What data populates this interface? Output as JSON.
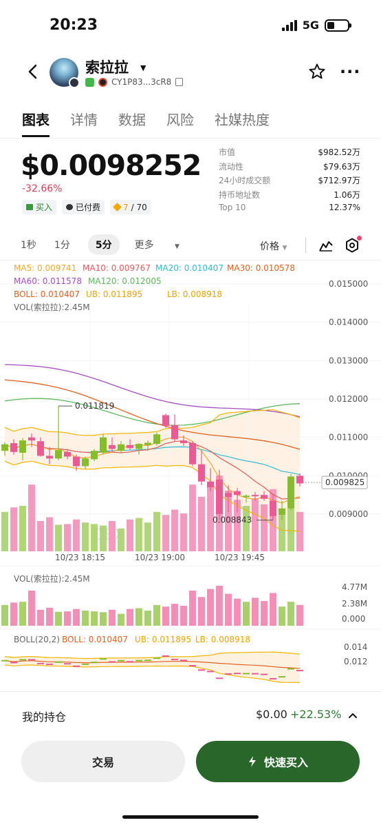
{
  "status": {
    "time": "20:23",
    "network": "5G"
  },
  "token": {
    "name": "索拉拉",
    "address": "CY1P83...3cR8"
  },
  "tabs": [
    "图表",
    "详情",
    "数据",
    "风险",
    "社媒热度"
  ],
  "price": {
    "value": "$0.0098252",
    "change": "-32.66%"
  },
  "pills": {
    "buy": "买入",
    "paid": "已付费",
    "score": "7",
    "score_total": "/ 70"
  },
  "stats": [
    {
      "label": "市值",
      "value": "$982.52万"
    },
    {
      "label": "流动性",
      "value": "$79.63万"
    },
    {
      "label": "24小时成交额",
      "value": "$712.97万"
    },
    {
      "label": "持币地址数",
      "value": "1.06万"
    },
    {
      "label": "Top 10",
      "value": "12.37%"
    }
  ],
  "timeframes": [
    "1秒",
    "1分",
    "5分",
    "更多"
  ],
  "price_selector": "价格",
  "legend": {
    "ma5": "MA5: 0.009741",
    "ma10": "MA10: 0.009767",
    "ma20": "MA20: 0.010407",
    "ma30": "MA30: 0.010578",
    "ma60": "MA60: 0.011578",
    "ma120": "MA120: 0.012005",
    "boll": "BOLL: 0.010407",
    "ub": "UB: 0.011895",
    "lb": "LB: 0.008918",
    "vol": "VOL(索拉拉):2.45M"
  },
  "colors": {
    "up": "#a9d16b",
    "down": "#f38fb7",
    "ma5": "#f0a830",
    "ma10": "#e05a5a",
    "ma20": "#34b9d3",
    "ma30": "#e06020",
    "ma60": "#a44cc0",
    "ma120": "#5cb85c",
    "boll": "#e06020",
    "ub": "#f0b400",
    "lb": "#f0b400",
    "buy": "#28662a"
  },
  "watermark": "DEX",
  "chart_data": {
    "type": "candlestick",
    "y_ticks": [
      "0.015000",
      "0.014000",
      "0.013000",
      "0.012000",
      "0.011000",
      "0.010000",
      "0.009000"
    ],
    "ylim": [
      0.0085,
      0.0155
    ],
    "x_ticks": [
      "10/23 18:15",
      "10/23 19:00",
      "10/23 19:45"
    ],
    "current_price_label": "0.009825",
    "high_label": "0.011819",
    "low_label": "0.008843",
    "candles": [
      {
        "o": 0.01065,
        "h": 0.01088,
        "l": 0.01052,
        "c": 0.01082,
        "v": 0.52
      },
      {
        "o": 0.01085,
        "h": 0.01095,
        "l": 0.01055,
        "c": 0.01062,
        "v": 0.58
      },
      {
        "o": 0.0106,
        "h": 0.01098,
        "l": 0.0104,
        "c": 0.01092,
        "v": 0.6
      },
      {
        "o": 0.011,
        "h": 0.0111,
        "l": 0.01075,
        "c": 0.01092,
        "v": 0.88
      },
      {
        "o": 0.0109,
        "h": 0.011,
        "l": 0.0105,
        "c": 0.01052,
        "v": 0.4
      },
      {
        "o": 0.01052,
        "h": 0.01075,
        "l": 0.0103,
        "c": 0.01045,
        "v": 0.45
      },
      {
        "o": 0.01045,
        "h": 0.01182,
        "l": 0.0104,
        "c": 0.01067,
        "v": 0.35
      },
      {
        "o": 0.01062,
        "h": 0.0107,
        "l": 0.01043,
        "c": 0.0105,
        "v": 0.36
      },
      {
        "o": 0.0105,
        "h": 0.01055,
        "l": 0.01013,
        "c": 0.01025,
        "v": 0.42
      },
      {
        "o": 0.01025,
        "h": 0.0105,
        "l": 0.01018,
        "c": 0.01045,
        "v": 0.38
      },
      {
        "o": 0.01043,
        "h": 0.0107,
        "l": 0.01038,
        "c": 0.01065,
        "v": 0.36
      },
      {
        "o": 0.0106,
        "h": 0.01108,
        "l": 0.01055,
        "c": 0.011,
        "v": 0.34
      },
      {
        "o": 0.0108,
        "h": 0.011,
        "l": 0.0106,
        "c": 0.0107,
        "v": 0.4
      },
      {
        "o": 0.01065,
        "h": 0.0109,
        "l": 0.01058,
        "c": 0.01082,
        "v": 0.3
      },
      {
        "o": 0.0108,
        "h": 0.01095,
        "l": 0.01067,
        "c": 0.01072,
        "v": 0.42
      },
      {
        "o": 0.0107,
        "h": 0.01085,
        "l": 0.01055,
        "c": 0.01083,
        "v": 0.44
      },
      {
        "o": 0.0108,
        "h": 0.01092,
        "l": 0.01065,
        "c": 0.01086,
        "v": 0.38
      },
      {
        "o": 0.01083,
        "h": 0.01113,
        "l": 0.01078,
        "c": 0.01108,
        "v": 0.52
      },
      {
        "o": 0.01158,
        "h": 0.01162,
        "l": 0.01125,
        "c": 0.0113,
        "v": 0.48
      },
      {
        "o": 0.01132,
        "h": 0.0116,
        "l": 0.0109,
        "c": 0.01095,
        "v": 0.55
      },
      {
        "o": 0.01092,
        "h": 0.01105,
        "l": 0.01078,
        "c": 0.01085,
        "v": 0.5
      },
      {
        "o": 0.01085,
        "h": 0.0109,
        "l": 0.01025,
        "c": 0.0103,
        "v": 0.88
      },
      {
        "o": 0.0103,
        "h": 0.01065,
        "l": 0.00975,
        "c": 0.00985,
        "v": 0.72
      },
      {
        "o": 0.00985,
        "h": 0.0102,
        "l": 0.0096,
        "c": 0.0097,
        "v": 0.92
      },
      {
        "o": 0.0099,
        "h": 0.01015,
        "l": 0.00885,
        "c": 0.009,
        "v": 1.0
      },
      {
        "o": 0.00955,
        "h": 0.00975,
        "l": 0.00905,
        "c": 0.00945,
        "v": 0.8
      },
      {
        "o": 0.0096,
        "h": 0.00968,
        "l": 0.00905,
        "c": 0.0095,
        "v": 0.68
      },
      {
        "o": 0.00945,
        "h": 0.00952,
        "l": 0.0093,
        "c": 0.00948,
        "v": 0.6
      },
      {
        "o": 0.0095,
        "h": 0.00958,
        "l": 0.00935,
        "c": 0.00947,
        "v": 0.7
      },
      {
        "o": 0.0095,
        "h": 0.0096,
        "l": 0.00935,
        "c": 0.0094,
        "v": 0.62
      },
      {
        "o": 0.00935,
        "h": 0.0095,
        "l": 0.00884,
        "c": 0.00895,
        "v": 0.82
      },
      {
        "o": 0.00898,
        "h": 0.00935,
        "l": 0.00884,
        "c": 0.00915,
        "v": 0.48
      },
      {
        "o": 0.00915,
        "h": 0.01005,
        "l": 0.0091,
        "c": 0.00998,
        "v": 0.6
      },
      {
        "o": 0.01,
        "h": 0.01006,
        "l": 0.00972,
        "c": 0.0098,
        "v": 0.52
      }
    ],
    "volume_panel": {
      "title": "VOL(索拉拉):2.45M",
      "y_ticks": [
        "4.77M",
        "2.38M",
        "0.000"
      ]
    },
    "boll_panel": {
      "title": "BOLL(20,2)",
      "boll": "BOLL: 0.010407",
      "ub": "UB: 0.011895",
      "lb": "LB: 0.008918",
      "y_ticks": [
        "0.014",
        "0.012"
      ]
    }
  },
  "holdings": {
    "label": "我的持仓",
    "value": "$0.00",
    "pct": "+22.53%"
  },
  "buttons": {
    "trade": "交易",
    "quick_buy": "快速买入"
  }
}
